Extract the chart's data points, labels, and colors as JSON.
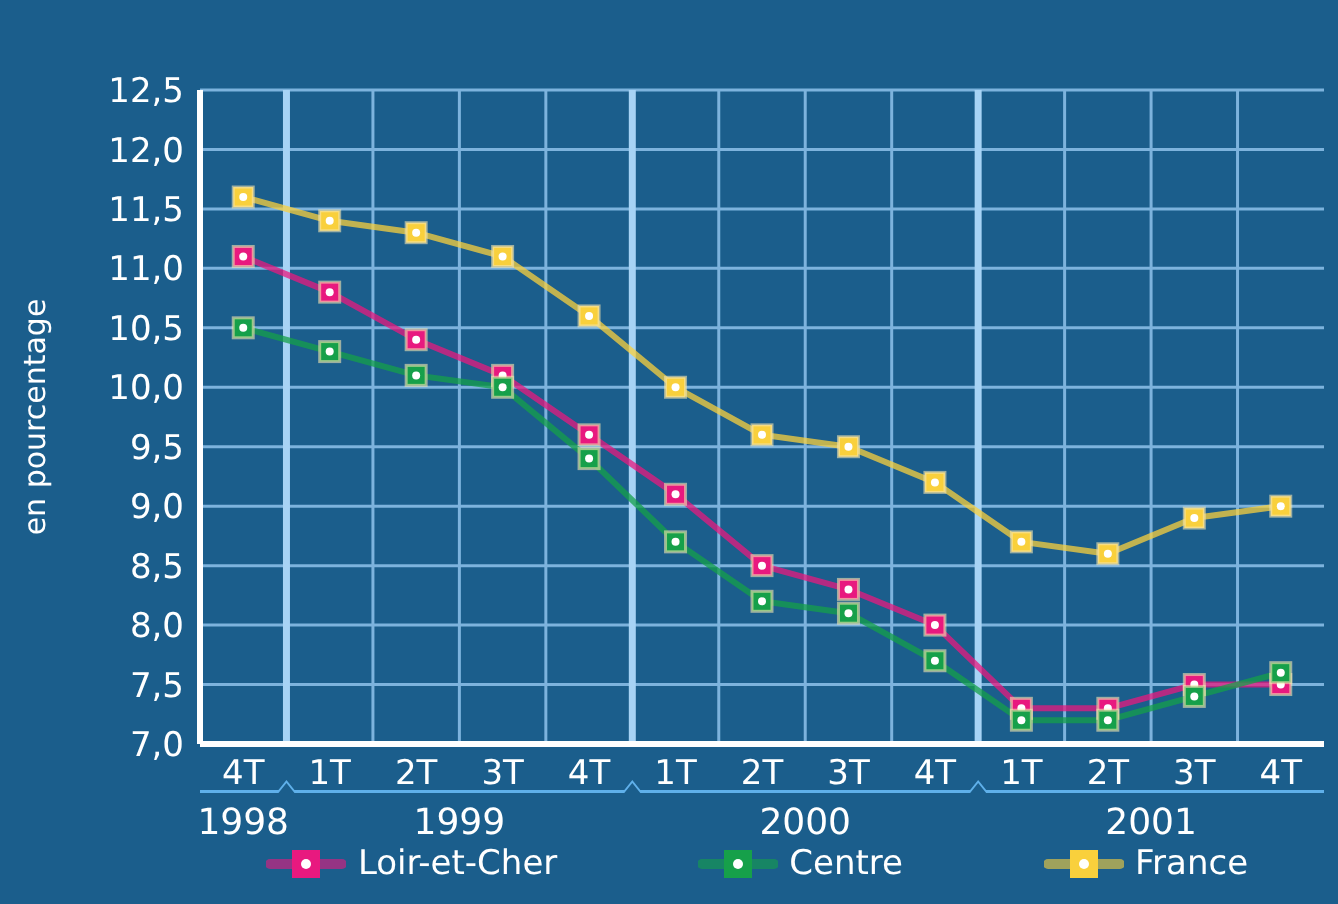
{
  "chart_data": {
    "type": "line",
    "ylabel": "en pourcentage",
    "categories": [
      "4T",
      "1T",
      "2T",
      "3T",
      "4T",
      "1T",
      "2T",
      "3T",
      "4T",
      "1T",
      "2T",
      "3T",
      "4T"
    ],
    "annotations": [
      "1998",
      "1999",
      "2000",
      "2001"
    ],
    "series": [
      {
        "name": "Loir-et-Cher",
        "color": "#e8197f",
        "values": [
          11.1,
          10.8,
          10.4,
          10.1,
          9.6,
          9.1,
          8.5,
          8.3,
          8.0,
          7.3,
          7.3,
          7.5,
          7.5
        ]
      },
      {
        "name": "Centre",
        "color": "#16a04a",
        "values": [
          10.5,
          10.3,
          10.1,
          10.0,
          9.4,
          8.7,
          8.2,
          8.1,
          7.7,
          7.2,
          7.2,
          7.4,
          7.6
        ]
      },
      {
        "name": "France",
        "color": "#f9d03c",
        "values": [
          11.6,
          11.4,
          11.3,
          11.1,
          10.6,
          10.0,
          9.6,
          9.5,
          9.2,
          8.7,
          8.6,
          8.9,
          9.0
        ]
      }
    ],
    "ylim": [
      7.0,
      12.5
    ],
    "yticks": [
      {
        "value": 7.0,
        "label": "7,0"
      },
      {
        "value": 7.5,
        "label": "7,5"
      },
      {
        "value": 8.0,
        "label": "8,0"
      },
      {
        "value": 8.5,
        "label": "8,5"
      },
      {
        "value": 9.0,
        "label": "9,0"
      },
      {
        "value": 9.5,
        "label": "9,5"
      },
      {
        "value": 10.0,
        "label": "10,0"
      },
      {
        "value": 10.5,
        "label": "10,5"
      },
      {
        "value": 11.0,
        "label": "11,0"
      },
      {
        "value": 11.5,
        "label": "11,5"
      },
      {
        "value": 12.0,
        "label": "12,0"
      },
      {
        "value": 12.5,
        "label": "12,5"
      }
    ],
    "grid": true,
    "legend": "bottom",
    "marker": "square",
    "line_style": "solid"
  }
}
